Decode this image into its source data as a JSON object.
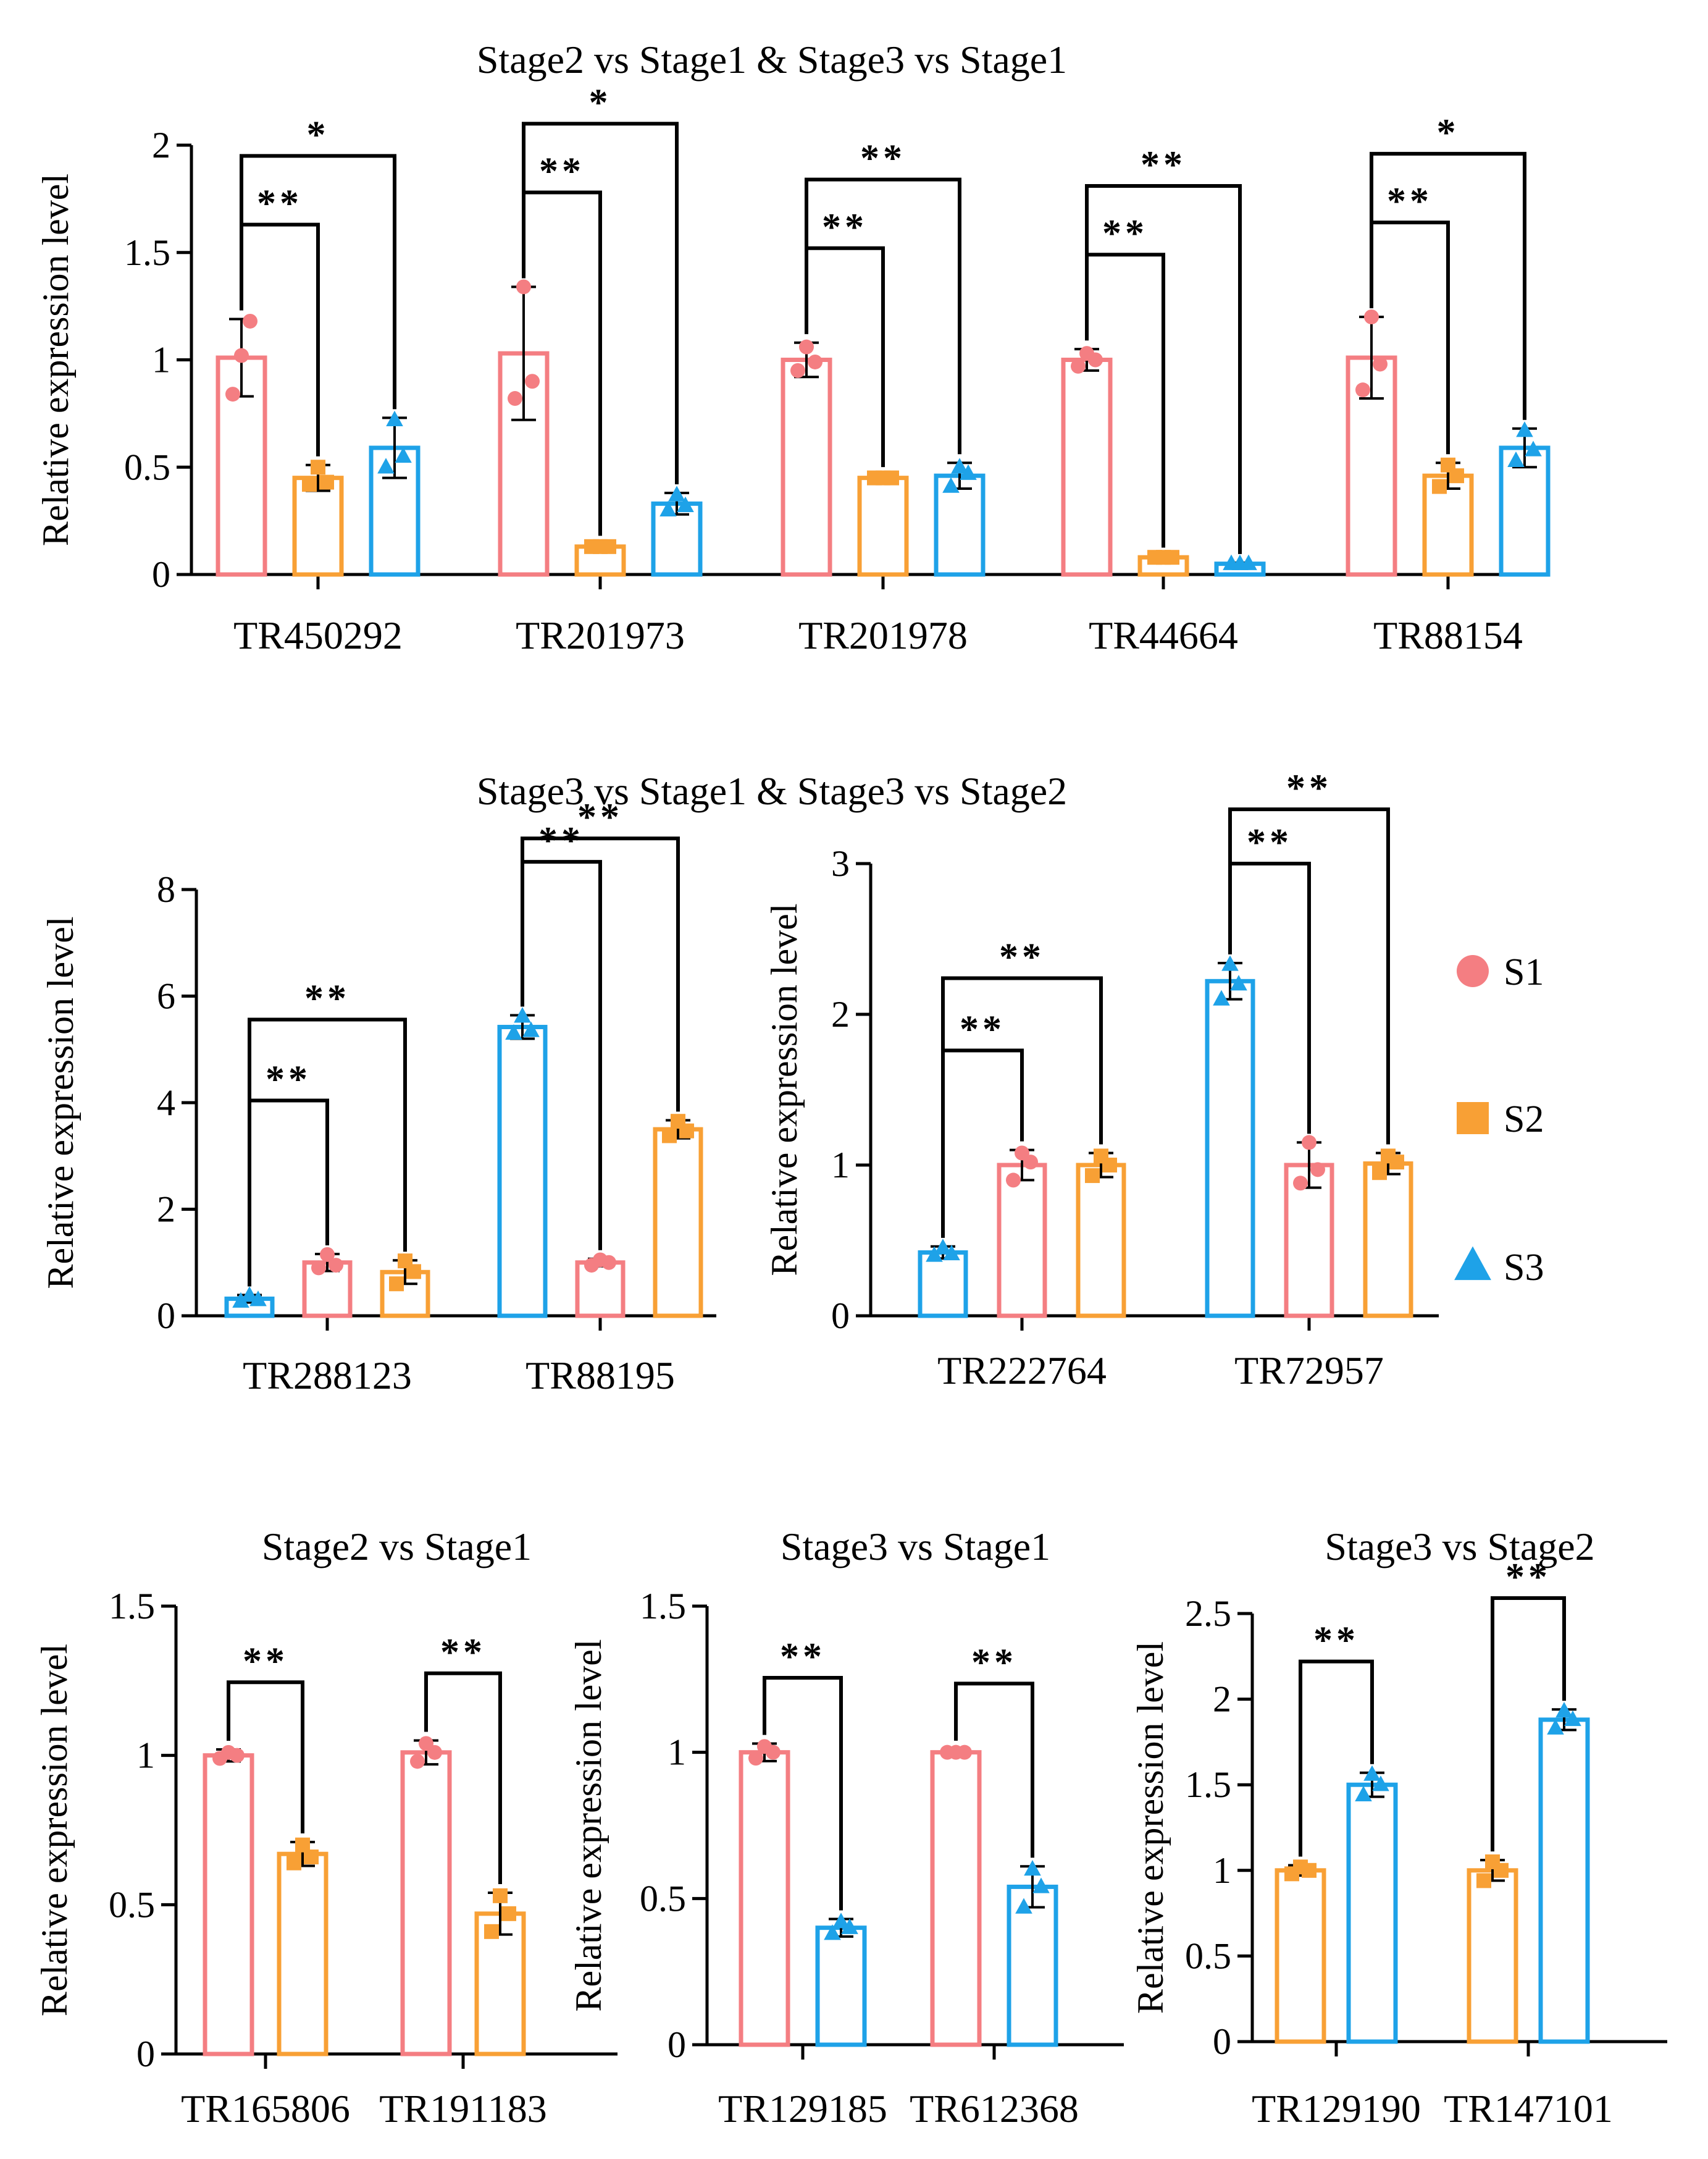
{
  "colors": {
    "S1": "#F47E82",
    "S2": "#F8A035",
    "S3": "#1EA2E8",
    "axis": "#000000"
  },
  "legend": [
    {
      "key": "S1",
      "label": "S1",
      "marker": "circle"
    },
    {
      "key": "S2",
      "label": "S2",
      "marker": "square"
    },
    {
      "key": "S3",
      "label": "S3",
      "marker": "triangle"
    }
  ],
  "section_titles": {
    "row1": "Stage2 vs Stage1 & Stage3 vs Stage1",
    "row2": "Stage3 vs Stage1 & Stage3 vs Stage2"
  },
  "chart_data": [
    {
      "id": "p1",
      "type": "bar",
      "title": "",
      "ylabel": "Relative expression level",
      "ylim": [
        0,
        2
      ],
      "yticks": [
        0,
        0.5,
        1,
        1.5,
        2
      ],
      "ytick_labels": [
        "0",
        "0.5",
        "1",
        "1.5",
        "2"
      ],
      "groups": [
        {
          "label": "TR450292",
          "bars": [
            {
              "s": "S1",
              "v": 1.01,
              "err": 0.18,
              "pts": [
                1.02,
                0.84,
                1.18
              ]
            },
            {
              "s": "S2",
              "v": 0.45,
              "err": 0.06,
              "pts": [
                0.5,
                0.42,
                0.43
              ]
            },
            {
              "s": "S3",
              "v": 0.59,
              "err": 0.14,
              "pts": [
                0.72,
                0.5,
                0.55
              ]
            }
          ],
          "sig": [
            {
              "from": 0,
              "to": 1,
              "label": "**"
            },
            {
              "from": 0,
              "to": 2,
              "label": "*"
            }
          ]
        },
        {
          "label": "TR201973",
          "bars": [
            {
              "s": "S1",
              "v": 1.03,
              "err": 0.31,
              "pts": [
                1.34,
                0.82,
                0.9
              ]
            },
            {
              "s": "S2",
              "v": 0.13,
              "err": 0.01,
              "pts": [
                0.13,
                0.13,
                0.13
              ]
            },
            {
              "s": "S3",
              "v": 0.33,
              "err": 0.05,
              "pts": [
                0.37,
                0.3,
                0.32
              ]
            }
          ],
          "sig": [
            {
              "from": 0,
              "to": 1,
              "label": "**"
            },
            {
              "from": 0,
              "to": 2,
              "label": "*"
            }
          ]
        },
        {
          "label": "TR201978",
          "bars": [
            {
              "s": "S1",
              "v": 1.0,
              "err": 0.08,
              "pts": [
                1.06,
                0.95,
                0.99
              ]
            },
            {
              "s": "S2",
              "v": 0.45,
              "err": 0.01,
              "pts": [
                0.45,
                0.45,
                0.45
              ]
            },
            {
              "s": "S3",
              "v": 0.46,
              "err": 0.06,
              "pts": [
                0.5,
                0.41,
                0.47
              ]
            }
          ],
          "sig": [
            {
              "from": 0,
              "to": 1,
              "label": "**"
            },
            {
              "from": 0,
              "to": 2,
              "label": "**"
            }
          ]
        },
        {
          "label": "TR44664",
          "bars": [
            {
              "s": "S1",
              "v": 1.0,
              "err": 0.05,
              "pts": [
                1.03,
                0.97,
                1.0
              ]
            },
            {
              "s": "S2",
              "v": 0.08,
              "err": 0.005,
              "pts": [
                0.08,
                0.08,
                0.08
              ]
            },
            {
              "s": "S3",
              "v": 0.05,
              "err": 0.005,
              "pts": [
                0.05,
                0.05,
                0.05
              ]
            }
          ],
          "sig": [
            {
              "from": 0,
              "to": 1,
              "label": "**"
            },
            {
              "from": 0,
              "to": 2,
              "label": "**"
            }
          ]
        },
        {
          "label": "TR88154",
          "bars": [
            {
              "s": "S1",
              "v": 1.01,
              "err": 0.19,
              "pts": [
                1.2,
                0.86,
                0.98
              ]
            },
            {
              "s": "S2",
              "v": 0.46,
              "err": 0.06,
              "pts": [
                0.51,
                0.41,
                0.46
              ]
            },
            {
              "s": "S3",
              "v": 0.59,
              "err": 0.09,
              "pts": [
                0.67,
                0.53,
                0.58
              ]
            }
          ],
          "sig": [
            {
              "from": 0,
              "to": 1,
              "label": "**"
            },
            {
              "from": 0,
              "to": 2,
              "label": "*"
            }
          ]
        }
      ]
    },
    {
      "id": "p2",
      "type": "bar",
      "title": "",
      "ylabel": "Relative expression level",
      "ylim": [
        0,
        8
      ],
      "yticks": [
        0,
        2,
        4,
        6,
        8
      ],
      "ytick_labels": [
        "0",
        "2",
        "4",
        "6",
        "8"
      ],
      "groups": [
        {
          "label": "TR288123",
          "bars": [
            {
              "s": "S3",
              "v": 0.32,
              "err": 0.07,
              "pts": [
                0.38,
                0.27,
                0.3
              ]
            },
            {
              "s": "S1",
              "v": 1.0,
              "err": 0.16,
              "pts": [
                1.15,
                0.9,
                0.95
              ]
            },
            {
              "s": "S2",
              "v": 0.82,
              "err": 0.22,
              "pts": [
                1.03,
                0.6,
                0.83
              ]
            }
          ],
          "sig": [
            {
              "from": 0,
              "to": 1,
              "label": "**"
            },
            {
              "from": 0,
              "to": 2,
              "label": "**"
            }
          ]
        },
        {
          "label": "TR88195",
          "bars": [
            {
              "s": "S3",
              "v": 5.42,
              "err": 0.22,
              "pts": [
                5.62,
                5.3,
                5.35
              ]
            },
            {
              "s": "S1",
              "v": 1.0,
              "err": 0.07,
              "pts": [
                1.05,
                0.95,
                1.0
              ]
            },
            {
              "s": "S2",
              "v": 3.5,
              "err": 0.17,
              "pts": [
                3.65,
                3.38,
                3.47
              ]
            }
          ],
          "sig": [
            {
              "from": 0,
              "to": 1,
              "label": "**"
            },
            {
              "from": 0,
              "to": 2,
              "label": "**"
            }
          ]
        }
      ]
    },
    {
      "id": "p3",
      "type": "bar",
      "title": "",
      "ylabel": "Relative expression level",
      "ylim": [
        0,
        3
      ],
      "yticks": [
        0,
        1,
        2,
        3
      ],
      "ytick_labels": [
        "0",
        "1",
        "2",
        "3"
      ],
      "groups": [
        {
          "label": "TR222764",
          "bars": [
            {
              "s": "S3",
              "v": 0.42,
              "err": 0.04,
              "pts": [
                0.45,
                0.4,
                0.41
              ]
            },
            {
              "s": "S1",
              "v": 1.0,
              "err": 0.1,
              "pts": [
                1.08,
                0.9,
                1.02
              ]
            },
            {
              "s": "S2",
              "v": 1.0,
              "err": 0.08,
              "pts": [
                1.06,
                0.93,
                1.0
              ]
            }
          ],
          "sig": [
            {
              "from": 0,
              "to": 1,
              "label": "**"
            },
            {
              "from": 0,
              "to": 2,
              "label": "**"
            }
          ]
        },
        {
          "label": "TR72957",
          "bars": [
            {
              "s": "S3",
              "v": 2.22,
              "err": 0.12,
              "pts": [
                2.33,
                2.1,
                2.2
              ]
            },
            {
              "s": "S1",
              "v": 1.0,
              "err": 0.15,
              "pts": [
                1.15,
                0.88,
                0.97
              ]
            },
            {
              "s": "S2",
              "v": 1.01,
              "err": 0.07,
              "pts": [
                1.06,
                0.95,
                1.02
              ]
            }
          ],
          "sig": [
            {
              "from": 0,
              "to": 1,
              "label": "**"
            },
            {
              "from": 0,
              "to": 2,
              "label": "**"
            }
          ]
        }
      ]
    },
    {
      "id": "p4",
      "type": "bar",
      "title": "Stage2 vs Stage1",
      "ylabel": "Relative expression level",
      "ylim": [
        0,
        1.5
      ],
      "yticks": [
        0,
        0.5,
        1,
        1.5
      ],
      "ytick_labels": [
        "0",
        "0.5",
        "1",
        "1.5"
      ],
      "groups": [
        {
          "label": "TR165806",
          "bars": [
            {
              "s": "S1",
              "v": 1.0,
              "err": 0.02,
              "pts": [
                1.01,
                0.99,
                1.0
              ]
            },
            {
              "s": "S2",
              "v": 0.67,
              "err": 0.04,
              "pts": [
                0.7,
                0.64,
                0.66
              ]
            }
          ],
          "sig": [
            {
              "from": 0,
              "to": 1,
              "label": "**"
            }
          ]
        },
        {
          "label": "TR191183",
          "bars": [
            {
              "s": "S1",
              "v": 1.01,
              "err": 0.04,
              "pts": [
                1.04,
                0.98,
                1.01
              ]
            },
            {
              "s": "S2",
              "v": 0.47,
              "err": 0.07,
              "pts": [
                0.53,
                0.41,
                0.47
              ]
            }
          ],
          "sig": [
            {
              "from": 0,
              "to": 1,
              "label": "**"
            }
          ]
        }
      ]
    },
    {
      "id": "p5",
      "type": "bar",
      "title": "Stage3 vs Stage1",
      "ylabel": "Relative expression level",
      "ylim": [
        0,
        1.5
      ],
      "yticks": [
        0,
        0.5,
        1,
        1.5
      ],
      "ytick_labels": [
        "0",
        "0.5",
        "1",
        "1.5"
      ],
      "groups": [
        {
          "label": "TR129185",
          "bars": [
            {
              "s": "S1",
              "v": 1.0,
              "err": 0.03,
              "pts": [
                1.02,
                0.98,
                1.0
              ]
            },
            {
              "s": "S3",
              "v": 0.4,
              "err": 0.03,
              "pts": [
                0.42,
                0.38,
                0.4
              ]
            }
          ],
          "sig": [
            {
              "from": 0,
              "to": 1,
              "label": "**"
            }
          ]
        },
        {
          "label": "TR612368",
          "bars": [
            {
              "s": "S1",
              "v": 1.0,
              "err": 0.01,
              "pts": [
                1.0,
                1.0,
                1.0
              ]
            },
            {
              "s": "S3",
              "v": 0.54,
              "err": 0.07,
              "pts": [
                0.6,
                0.47,
                0.54
              ]
            }
          ],
          "sig": [
            {
              "from": 0,
              "to": 1,
              "label": "**"
            }
          ]
        }
      ]
    },
    {
      "id": "p6",
      "type": "bar",
      "title": "Stage3 vs Stage2",
      "ylabel": "Relative expression level",
      "ylim": [
        0,
        2.5
      ],
      "yticks": [
        0,
        0.5,
        1,
        1.5,
        2,
        2.5
      ],
      "ytick_labels": [
        "0",
        "0.5",
        "1",
        "1.5",
        "2",
        "2.5"
      ],
      "groups": [
        {
          "label": "TR129190",
          "bars": [
            {
              "s": "S2",
              "v": 1.0,
              "err": 0.03,
              "pts": [
                1.02,
                0.98,
                1.0
              ]
            },
            {
              "s": "S3",
              "v": 1.5,
              "err": 0.07,
              "pts": [
                1.56,
                1.44,
                1.5
              ]
            }
          ],
          "sig": [
            {
              "from": 0,
              "to": 1,
              "label": "**"
            }
          ]
        },
        {
          "label": "TR147101",
          "bars": [
            {
              "s": "S2",
              "v": 1.0,
              "err": 0.06,
              "pts": [
                1.05,
                0.94,
                1.0
              ]
            },
            {
              "s": "S3",
              "v": 1.88,
              "err": 0.06,
              "pts": [
                1.93,
                1.83,
                1.88
              ]
            }
          ],
          "sig": [
            {
              "from": 0,
              "to": 1,
              "label": "**"
            }
          ]
        }
      ]
    }
  ]
}
